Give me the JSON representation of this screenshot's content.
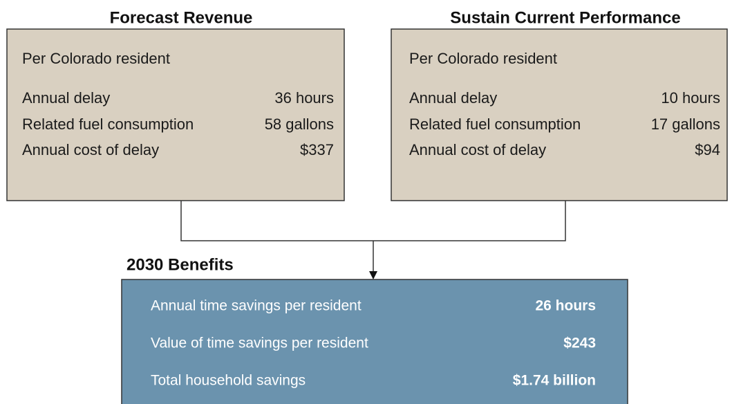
{
  "panels": [
    {
      "title": "Forecast Revenue",
      "subtitle": "Per Colorado resident",
      "rows": [
        [
          "Annual delay",
          "36 hours"
        ],
        [
          "Related fuel consumption",
          "58 gallons"
        ],
        [
          "Annual cost of delay",
          "$337"
        ]
      ]
    },
    {
      "title": "Sustain Current Performance",
      "subtitle": "Per Colorado resident",
      "rows": [
        [
          "Annual delay",
          "10 hours"
        ],
        [
          "Related fuel consumption",
          "17 gallons"
        ],
        [
          "Annual cost of delay",
          "$94"
        ]
      ]
    }
  ],
  "benefits": {
    "title": "2030 Benefits",
    "rows": [
      [
        "Annual time savings per resident",
        "26 hours"
      ],
      [
        "Value of time savings per resident",
        "$243"
      ],
      [
        "Total household savings",
        "$1.74 billion"
      ]
    ]
  }
}
